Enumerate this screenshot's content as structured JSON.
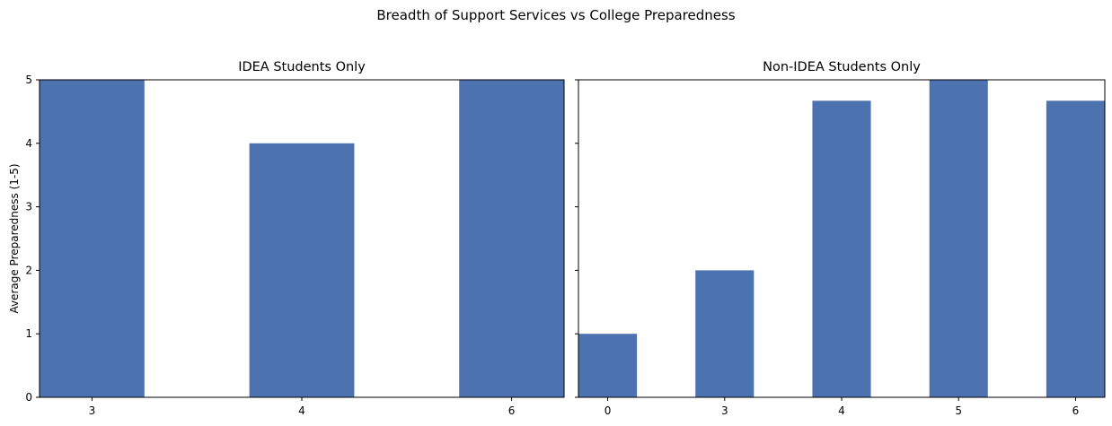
{
  "figure": {
    "title": "Breadth of Support Services vs College Preparedness",
    "bar_color": "#4c72b0"
  },
  "chart_data": [
    {
      "type": "bar",
      "title": "IDEA Students Only",
      "xlabel": "",
      "ylabel": "Average Preparedness (1-5)",
      "categories": [
        "3",
        "4",
        "6"
      ],
      "values": [
        5,
        4,
        5
      ],
      "ylim": [
        0,
        5
      ],
      "yticks": [
        0,
        1,
        2,
        3,
        4,
        5
      ],
      "grid": false,
      "legend": "none"
    },
    {
      "type": "bar",
      "title": "Non-IDEA Students Only",
      "xlabel": "",
      "ylabel": "",
      "categories": [
        "0",
        "3",
        "4",
        "5",
        "6"
      ],
      "values": [
        1,
        2,
        4.67,
        5,
        4.67
      ],
      "ylim": [
        0,
        5
      ],
      "yticks": [
        0,
        1,
        2,
        3,
        4,
        5
      ],
      "shared_y": true,
      "grid": false,
      "legend": "none"
    }
  ]
}
